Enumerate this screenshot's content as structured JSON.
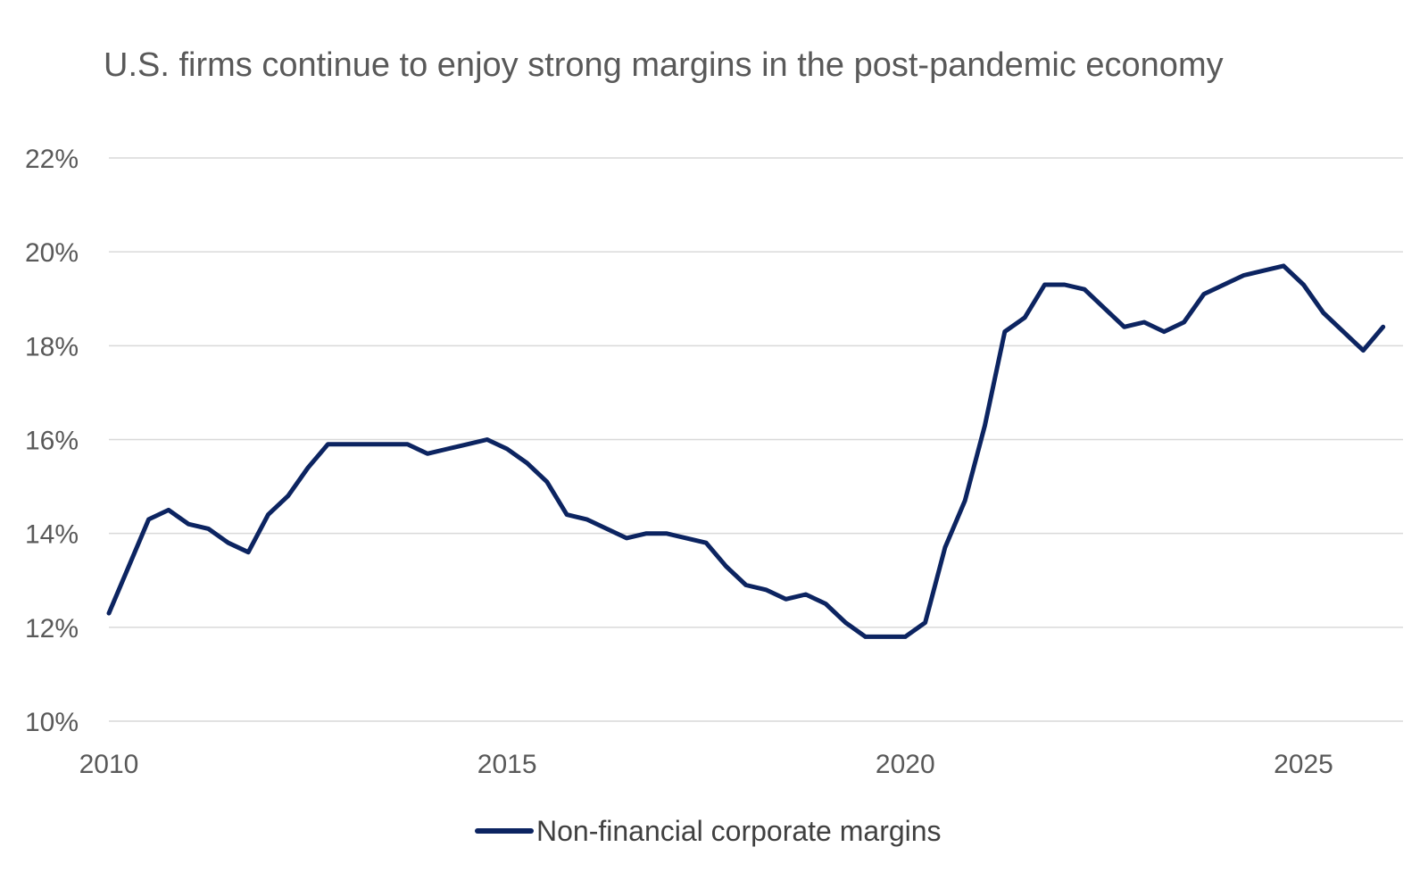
{
  "chart_data": {
    "type": "line",
    "title": "U.S. firms continue to enjoy strong margins in the post-pandemic economy",
    "xlabel": "",
    "ylabel": "",
    "xlim": [
      2010,
      2026.25
    ],
    "ylim": [
      0.1,
      0.22
    ],
    "x_ticks": [
      2010,
      2015,
      2020,
      2025
    ],
    "y_ticks": [
      0.1,
      0.12,
      0.14,
      0.16,
      0.18,
      0.2,
      0.22
    ],
    "y_tick_labels": [
      "10%",
      "12%",
      "14%",
      "16%",
      "18%",
      "20%",
      "22%"
    ],
    "grid": "horizontal",
    "legend_position": "bottom-center",
    "series": [
      {
        "name": "Non-financial corporate margins",
        "color": "#0c2461",
        "x": [
          2010.0,
          2010.25,
          2010.5,
          2010.75,
          2011.0,
          2011.25,
          2011.5,
          2011.75,
          2012.0,
          2012.25,
          2012.5,
          2012.75,
          2013.0,
          2013.25,
          2013.5,
          2013.75,
          2014.0,
          2014.25,
          2014.5,
          2014.75,
          2015.0,
          2015.25,
          2015.5,
          2015.75,
          2016.0,
          2016.25,
          2016.5,
          2016.75,
          2017.0,
          2017.25,
          2017.5,
          2017.75,
          2018.0,
          2018.25,
          2018.5,
          2018.75,
          2019.0,
          2019.25,
          2019.5,
          2019.75,
          2020.0,
          2020.25,
          2020.5,
          2020.75,
          2021.0,
          2021.25,
          2021.5,
          2021.75,
          2022.0,
          2022.25,
          2022.5,
          2022.75,
          2023.0,
          2023.25,
          2023.5,
          2023.75,
          2024.0,
          2024.25,
          2024.5,
          2024.75,
          2025.0,
          2025.25,
          2025.5,
          2025.75,
          2026.0
        ],
        "values": [
          0.123,
          0.133,
          0.143,
          0.145,
          0.142,
          0.141,
          0.138,
          0.136,
          0.144,
          0.148,
          0.154,
          0.159,
          0.159,
          0.159,
          0.159,
          0.159,
          0.157,
          0.158,
          0.159,
          0.16,
          0.158,
          0.155,
          0.151,
          0.144,
          0.143,
          0.141,
          0.139,
          0.14,
          0.14,
          0.139,
          0.138,
          0.133,
          0.129,
          0.128,
          0.126,
          0.127,
          0.125,
          0.121,
          0.118,
          0.118,
          0.118,
          0.121,
          0.137,
          0.147,
          0.163,
          0.183,
          0.186,
          0.193,
          0.193,
          0.192,
          0.188,
          0.184,
          0.185,
          0.183,
          0.185,
          0.191,
          0.193,
          0.195,
          0.196,
          0.197,
          0.193,
          0.187,
          0.183,
          0.179,
          0.184
        ]
      }
    ]
  }
}
